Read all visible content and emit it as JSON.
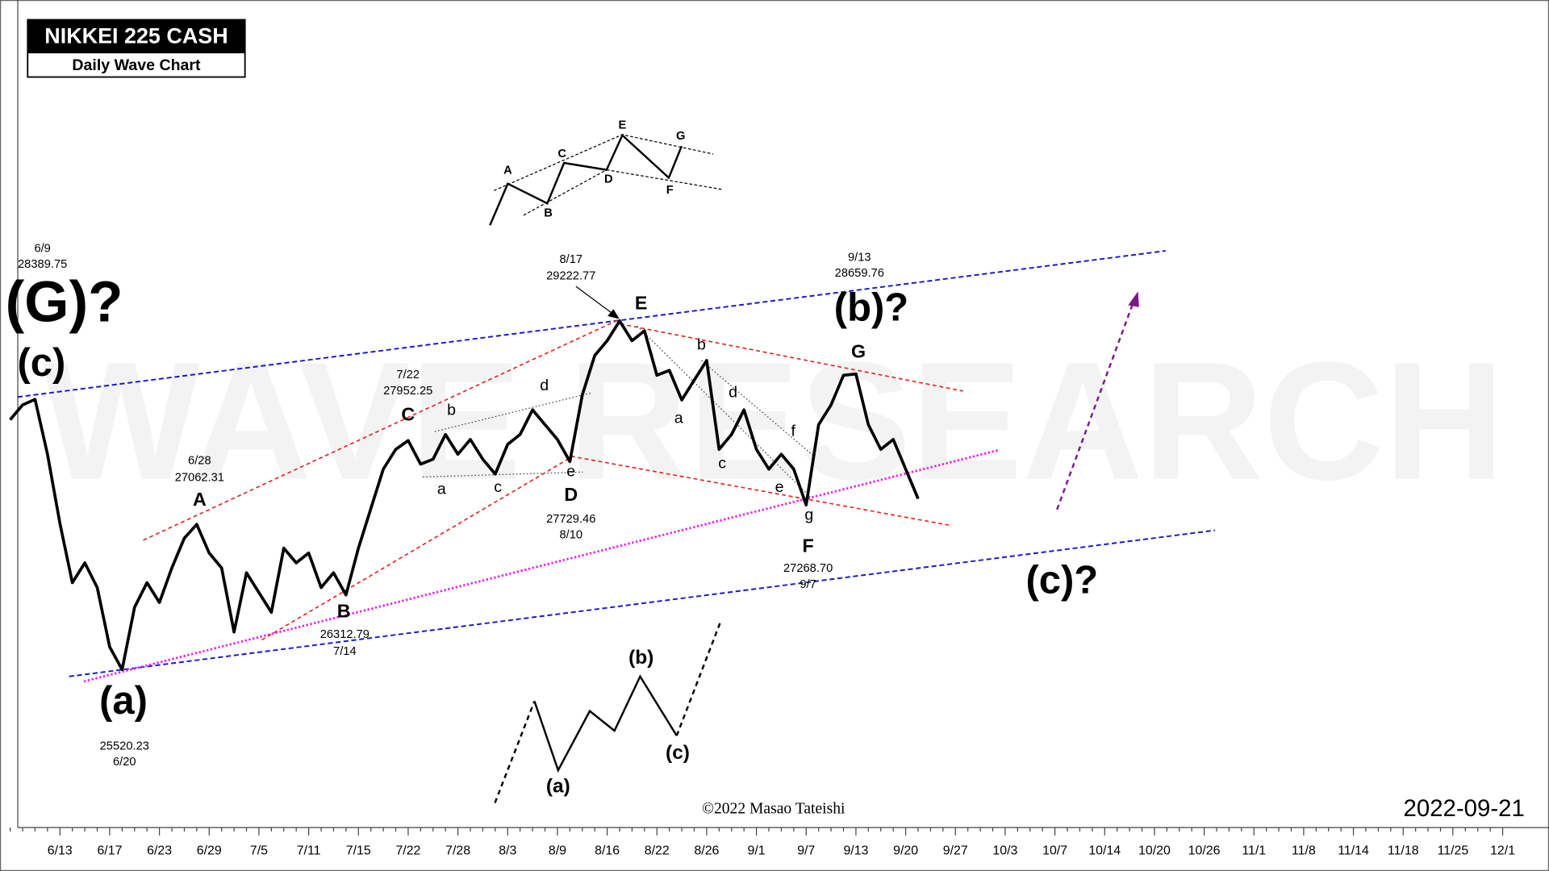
{
  "chart_data": {
    "type": "line",
    "title": "NIKKEI 225 CASH",
    "subtitle": "Daily Wave Chart",
    "date_stamp": "2022-09-21",
    "copyright": "©2022 Masao Tateishi",
    "watermark": "WAVE RESEARCH",
    "categories": [
      null,
      null,
      "6/9",
      null,
      "6/13",
      null,
      null,
      null,
      "6/17",
      "6/20",
      null,
      null,
      "6/23",
      null,
      null,
      "6/28",
      "6/29",
      null,
      null,
      null,
      "7/5",
      null,
      null,
      null,
      "7/11",
      null,
      null,
      "7/14",
      "7/15",
      null,
      null,
      null,
      "7/22",
      null,
      null,
      null,
      "7/28",
      null,
      null,
      null,
      "8/3",
      null,
      null,
      null,
      "8/9",
      "8/10",
      null,
      null,
      "8/16",
      "8/17",
      null,
      null,
      "8/22",
      null,
      null,
      null,
      "8/26",
      null,
      null,
      null,
      "9/1",
      null,
      null,
      null,
      "9/7",
      null,
      null,
      null,
      "9/13",
      null,
      null,
      null,
      "9/20",
      null,
      null,
      null,
      "9/27",
      null,
      null,
      null,
      "10/3",
      null,
      null,
      null,
      "10/7",
      null,
      null,
      null,
      "10/14",
      null,
      null,
      null,
      "10/20",
      null,
      null,
      null,
      "10/26",
      null,
      null,
      null,
      "11/1",
      null,
      null,
      null,
      "11/8",
      null,
      null,
      null,
      "11/14",
      null,
      null,
      null,
      "11/18",
      null,
      null,
      null,
      "11/25",
      null,
      null,
      null,
      "12/1"
    ],
    "series": [
      {
        "color": "#000000",
        "values": [
          28174,
          28331,
          28389.75,
          27807,
          27073,
          26443,
          26653,
          26391,
          25761,
          25520.23,
          26181,
          26443,
          26233,
          26600,
          26915,
          27062.31,
          26758,
          26600,
          25919,
          26548,
          26338,
          26128,
          26810,
          26653,
          26758,
          26391,
          26548,
          26312.79,
          26810,
          27230,
          27649,
          27859,
          27952.25,
          27702,
          27754,
          28017,
          27807,
          27964,
          27754,
          27597,
          27912,
          28017,
          28279,
          28121,
          27964,
          27729.46,
          28436,
          28856,
          29013,
          29222.77,
          29013,
          29118,
          28646,
          28698,
          28384,
          28594,
          28803,
          27859,
          28017,
          28279,
          27859,
          27649,
          27807,
          27649,
          27268.7,
          28121,
          28331,
          28646,
          28659.76,
          28121,
          27859,
          27964,
          27649,
          27335,
          null,
          null,
          null,
          null,
          null,
          null,
          null,
          null,
          null,
          null,
          null,
          null,
          null,
          null,
          null,
          null,
          null,
          null,
          null,
          null,
          null,
          null,
          null,
          null,
          null,
          null,
          null,
          null,
          null,
          null,
          null,
          null,
          null,
          null,
          null,
          null,
          null,
          null,
          null,
          null,
          null,
          null,
          null,
          null,
          null,
          null,
          null
        ],
        "value_labels": [
          null,
          null,
          null,
          null,
          null,
          null,
          null,
          null,
          null,
          null,
          null,
          null,
          null,
          null,
          null,
          null,
          null,
          null,
          null,
          null,
          null,
          null,
          null,
          null,
          null,
          null,
          null,
          null,
          null,
          null,
          null,
          null,
          null,
          null,
          null,
          null,
          null,
          null,
          null,
          null,
          null,
          null,
          null,
          null,
          null,
          null,
          null,
          null,
          null,
          null,
          null,
          null,
          null,
          null,
          null,
          null,
          null,
          null,
          null,
          null,
          null,
          null,
          null,
          null,
          "27268.70",
          null,
          null,
          null,
          null,
          null,
          null,
          null,
          null,
          null,
          null,
          null,
          null,
          null,
          null,
          null,
          null,
          null,
          null,
          null,
          null,
          null,
          null,
          null,
          null,
          null,
          null,
          null,
          null,
          null,
          null,
          null,
          null,
          null,
          null,
          null,
          null,
          null,
          null,
          null,
          null,
          null,
          null,
          null,
          null,
          null,
          null,
          null,
          null,
          null,
          null,
          null,
          null,
          null,
          null,
          null,
          null
        ]
      }
    ],
    "ylim": [
      23842,
      32632
    ],
    "wave_labels": [
      "(G)?",
      "(c)",
      "(a)",
      "A",
      "B",
      "C",
      "D",
      "E",
      "F",
      "G",
      "(b)?",
      "(c)?"
    ],
    "sub_waves_1": [
      "a",
      "b",
      "c",
      "d",
      "e"
    ],
    "sub_waves_2": [
      "a",
      "b",
      "c",
      "d",
      "e",
      "f",
      "g"
    ],
    "inset_triangle": [
      "A",
      "B",
      "C",
      "D",
      "E",
      "F",
      "G"
    ],
    "inset_zigzag": [
      "(a)",
      "(b)",
      "(c)"
    ]
  }
}
